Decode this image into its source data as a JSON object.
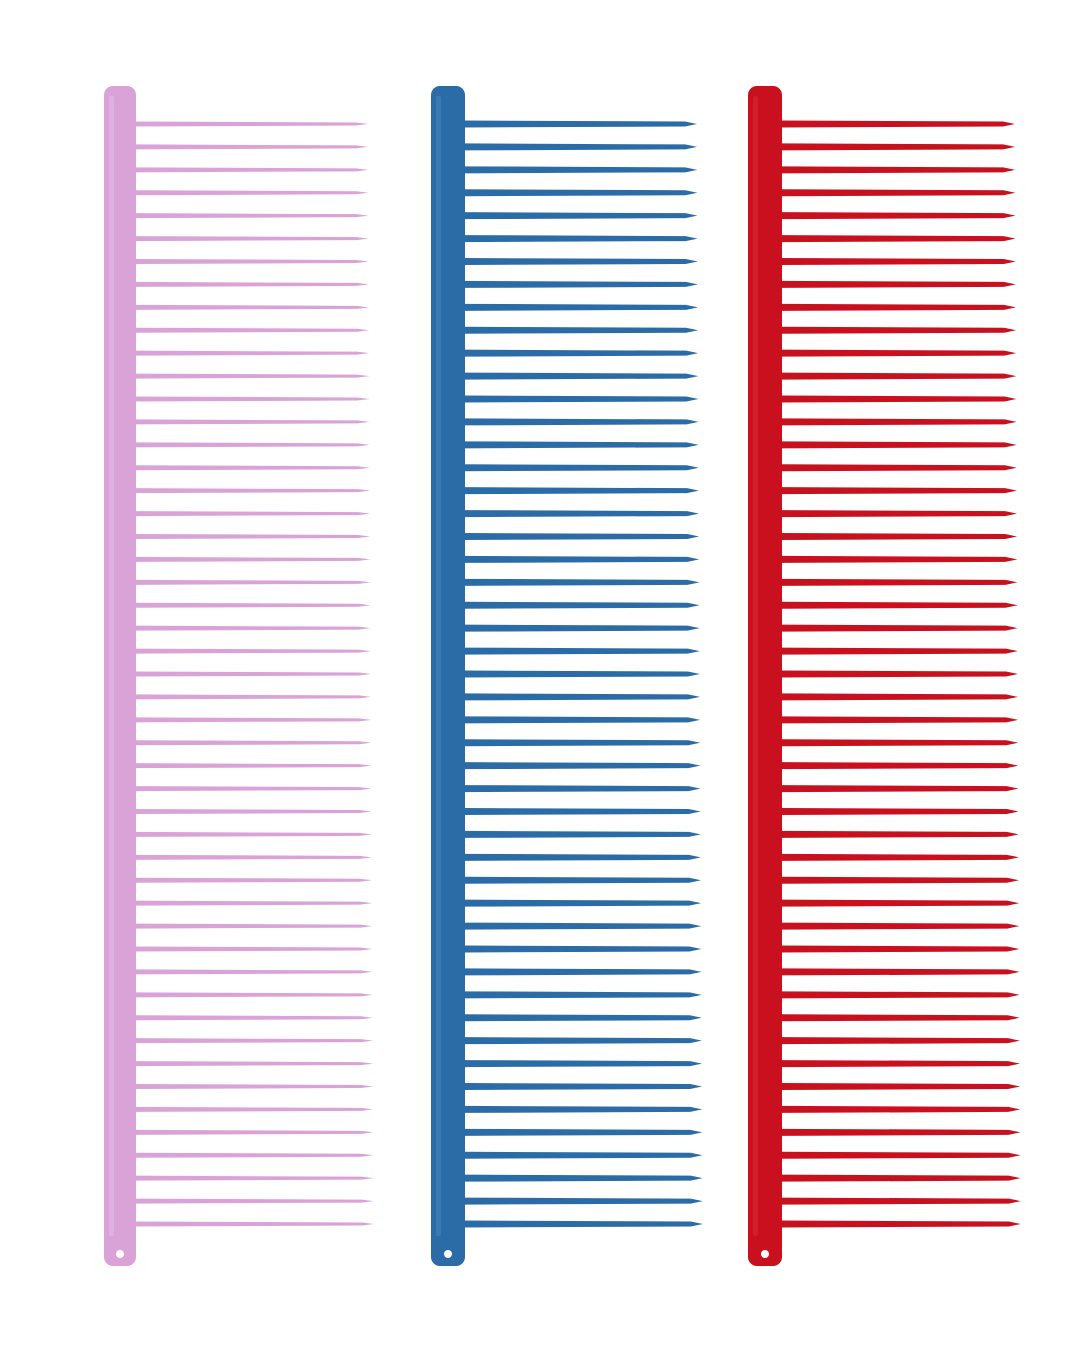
{
  "combs": [
    {
      "name": "pink-comb",
      "color": "#d9a3d8",
      "color_light": "#e6bfe5",
      "tooth_count": 49
    },
    {
      "name": "blue-comb",
      "color": "#2c6ca6",
      "color_light": "#4a86bd",
      "tooth_count": 49
    },
    {
      "name": "red-comb",
      "color": "#c8101e",
      "color_light": "#e02a35",
      "tooth_count": 49
    }
  ],
  "background": "#ffffff"
}
